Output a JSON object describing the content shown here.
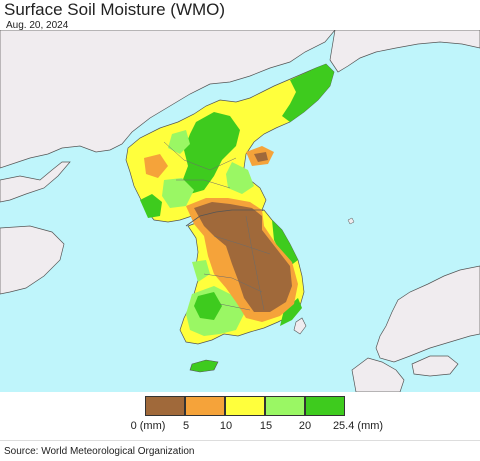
{
  "header": {
    "title": "Surface Soil Moisture (WMO)",
    "date": "Aug. 20, 2024"
  },
  "legend": {
    "ticks": [
      "0 (mm)",
      "5",
      "10",
      "15",
      "20",
      "25.4 (mm)"
    ],
    "colors": [
      "#a0693a",
      "#f5a33a",
      "#ffff3c",
      "#9af764",
      "#3ecb1e"
    ]
  },
  "footer": {
    "source": "Source: World Meteorological Organization"
  },
  "map": {
    "sea_color": "#bff5fb",
    "land_outside_color": "#f0ecef"
  }
}
